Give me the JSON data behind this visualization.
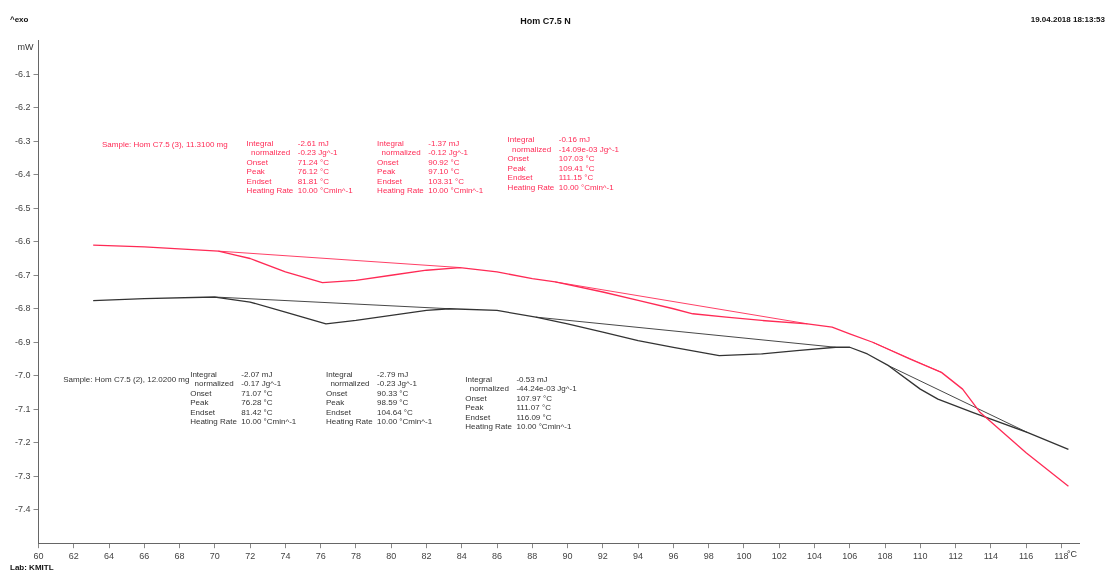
{
  "chart_data": {
    "type": "line",
    "title": "Hom C7.5 N",
    "xlabel": "°C",
    "ylabel": "mW",
    "xlim": [
      60,
      119
    ],
    "xticks": [
      60,
      62,
      64,
      66,
      68,
      70,
      72,
      74,
      76,
      78,
      80,
      82,
      84,
      86,
      88,
      90,
      92,
      94,
      96,
      98,
      100,
      102,
      104,
      106,
      108,
      110,
      112,
      114,
      116,
      118
    ],
    "ylim": [
      -7.5,
      -6.0
    ],
    "yticks": [
      -6.1,
      -6.2,
      -6.3,
      -6.4,
      -6.5,
      -6.6,
      -6.7,
      -6.8,
      -6.9,
      {
        "value": -7,
        "label": "-7.0"
      },
      -7.1,
      -7.2,
      -7.3,
      -7.4
    ],
    "grid": false,
    "legend": false,
    "marker": "none",
    "line_style": "solid",
    "series": [
      {
        "name": "Sample: Hom C7.5 (3), 11.3100 mg",
        "color": "#ff2a55",
        "x": [
          63.1,
          66,
          70.2,
          72,
          74,
          76.1,
          78,
          80,
          82,
          83.9,
          86,
          88,
          89.3,
          92,
          94,
          96,
          97.1,
          99,
          101,
          103.6,
          105,
          106,
          107.3,
          109.4,
          111.2,
          112.4,
          113.4,
          116,
          118.4
        ],
        "values": [
          -6.61,
          -6.615,
          -6.628,
          -6.65,
          -6.69,
          -6.722,
          -6.715,
          -6.7,
          -6.685,
          -6.677,
          -6.69,
          -6.71,
          -6.72,
          -6.75,
          -6.775,
          -6.8,
          -6.815,
          -6.825,
          -6.835,
          -6.845,
          -6.855,
          -6.875,
          -6.9,
          -6.95,
          -6.99,
          -7.04,
          -7.11,
          -7.23,
          -7.33
        ]
      },
      {
        "name": "Sample: Hom C7.5 (2), 12.0200 mg",
        "color": "#333333",
        "x": [
          63.1,
          66,
          70,
          72,
          74,
          76.3,
          78,
          80,
          82,
          83.3,
          86,
          88.2,
          90,
          92,
          94,
          96,
          98.6,
          101,
          103,
          105.2,
          106,
          107,
          108.2,
          110,
          111,
          113,
          116.1,
          118.4
        ],
        "values": [
          -6.776,
          -6.77,
          -6.765,
          -6.78,
          -6.81,
          -6.845,
          -6.835,
          -6.82,
          -6.805,
          -6.8,
          -6.805,
          -6.825,
          -6.845,
          -6.87,
          -6.895,
          -6.915,
          -6.94,
          -6.935,
          -6.925,
          -6.915,
          -6.915,
          -6.935,
          -6.97,
          -7.04,
          -7.07,
          -7.11,
          -7.17,
          -7.22
        ]
      },
      {
        "type": "line",
        "color": "#ff2a55",
        "x": [
          70.2,
          83.9
        ],
        "values": [
          -6.628,
          -6.677
        ]
      },
      {
        "type": "line",
        "color": "#ff2a55",
        "x": [
          89.3,
          103.6
        ],
        "values": [
          -6.72,
          -6.845
        ]
      },
      {
        "type": "line",
        "color": "#ff2a55",
        "x": [
          107.3,
          111.2
        ],
        "values": [
          -6.9,
          -6.99
        ]
      },
      {
        "type": "line",
        "color": "#333333",
        "x": [
          70,
          83.3
        ],
        "values": [
          -6.765,
          -6.8
        ]
      },
      {
        "type": "line",
        "color": "#333333",
        "x": [
          88.2,
          105.2
        ],
        "values": [
          -6.825,
          -6.915
        ]
      },
      {
        "type": "line",
        "color": "#333333",
        "x": [
          108.2,
          116.1
        ],
        "values": [
          -6.97,
          -7.17
        ]
      }
    ],
    "annotations": [
      "^exo",
      "19.04.2018 18:13:53",
      "Lab: KMITL",
      "Integral\n  normalized\nOnset\nPeak\nEndset\nHeating Rate",
      "-2.61 mJ\n-0.23 Jg^-1\n71.24 °C\n76.12 °C\n81.81 °C\n10.00 °Cmin^-1",
      "Integral\n  normalized\nOnset\nPeak\nEndset\nHeating Rate",
      "-1.37 mJ\n-0.12 Jg^-1\n90.92 °C\n97.10 °C\n103.31 °C\n10.00 °Cmin^-1",
      "Integral\n  normalized\nOnset\nPeak\nEndset\nHeating Rate",
      "-0.16 mJ\n-14.09e-03 Jg^-1\n107.03 °C\n109.41 °C\n111.15 °C\n10.00 °Cmin^-1",
      "Integral\n  normalized\nOnset\nPeak\nEndset\nHeating Rate",
      "-2.07 mJ\n-0.17 Jg^-1\n71.07 °C\n76.28 °C\n81.42 °C\n10.00 °Cmin^-1",
      "Integral\n  normalized\nOnset\nPeak\nEndset\nHeating Rate",
      "-2.79 mJ\n-0.23 Jg^-1\n90.33 °C\n98.59 °C\n104.64 °C\n10.00 °Cmin^-1",
      "Integral\n  normalized\nOnset\nPeak\nEndset\nHeating Rate",
      "-0.53 mJ\n-44.24e-03 Jg^-1\n107.97 °C\n111.07 °C\n116.09 °C\n10.00 °Cmin^-1"
    ]
  }
}
